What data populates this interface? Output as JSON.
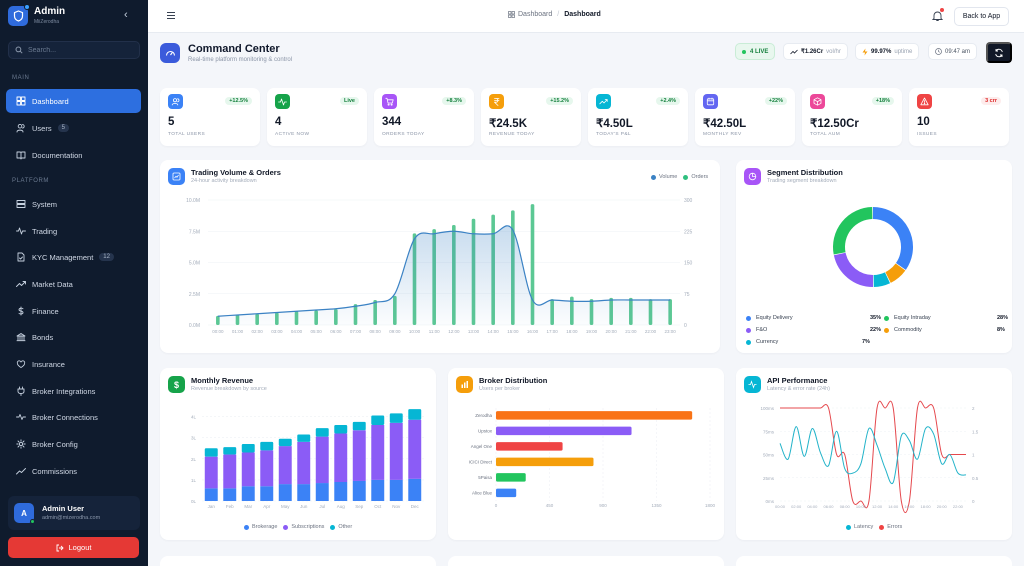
{
  "sidebar": {
    "app_title": "Admin",
    "app_subtitle": "MiiZerodha",
    "search_placeholder": "Search...",
    "section_main": "MAIN",
    "section_platform": "PLATFORM",
    "items": [
      {
        "label": "Dashboard",
        "icon": "grid-icon",
        "active": true
      },
      {
        "label": "Users",
        "icon": "users-icon",
        "badge": "5"
      },
      {
        "label": "Documentation",
        "icon": "book-icon"
      },
      {
        "label": "System",
        "icon": "server-icon"
      },
      {
        "label": "Trading",
        "icon": "activity-icon"
      },
      {
        "label": "KYC Management",
        "icon": "file-check-icon",
        "badge": "12"
      },
      {
        "label": "Market Data",
        "icon": "trending-up-icon"
      },
      {
        "label": "Finance",
        "icon": "dollar-icon"
      },
      {
        "label": "Bonds",
        "icon": "bank-icon"
      },
      {
        "label": "Insurance",
        "icon": "heart-icon"
      },
      {
        "label": "Broker Integrations",
        "icon": "plug-icon"
      },
      {
        "label": "Broker Connections",
        "icon": "pulse-icon"
      },
      {
        "label": "Broker Config",
        "icon": "gear-icon"
      },
      {
        "label": "Commissions",
        "icon": "trend-icon"
      }
    ],
    "user": {
      "initial": "A",
      "name": "Admin User",
      "email": "admin@mizerodha.com"
    },
    "logout_label": "Logout"
  },
  "topbar": {
    "breadcrumb_root": "Dashboard",
    "breadcrumb_current": "Dashboard",
    "back_label": "Back to App"
  },
  "header": {
    "title": "Command Center",
    "subtitle": "Real-time platform monitoring & control",
    "live": "4 LIVE",
    "volume": "₹1.26Cr",
    "volume_meta": "vol/hr",
    "uptime": "99.97%",
    "uptime_meta": "uptime",
    "time": "09:47 am"
  },
  "colors": {
    "accent": "#2d6fe0",
    "volume": "#3b82c4",
    "orders": "#2fbf7f",
    "danger": "#e53935"
  },
  "stats": [
    {
      "value": "5",
      "label": "TOTAL USERS",
      "change": "+12.5%",
      "color": "#3b82f6"
    },
    {
      "value": "4",
      "label": "ACTIVE NOW",
      "change": "Live",
      "color": "#16a34a"
    },
    {
      "value": "344",
      "label": "ORDERS TODAY",
      "change": "+8.3%",
      "color": "#a855f7"
    },
    {
      "value": "₹24.5K",
      "label": "REVENUE TODAY",
      "change": "+15.2%",
      "color": "#f59e0b"
    },
    {
      "value": "₹4.50L",
      "label": "TODAY'S P&L",
      "change": "+2.4%",
      "color": "#06b6d4"
    },
    {
      "value": "₹42.50L",
      "label": "MONTHLY REV",
      "change": "+22%",
      "color": "#6366f1"
    },
    {
      "value": "₹12.50Cr",
      "label": "TOTAL AUM",
      "change": "+18%",
      "color": "#ec4899"
    },
    {
      "value": "10",
      "label": "ISSUES",
      "change": "3 crr",
      "color": "#ef4444"
    }
  ],
  "panels": {
    "trading": {
      "title": "Trading Volume & Orders",
      "subtitle": "24-hour activity breakdown",
      "legend": [
        "Volume",
        "Orders"
      ]
    },
    "segment": {
      "title": "Segment Distribution",
      "subtitle": "Trading segment breakdown"
    },
    "revenue": {
      "title": "Monthly Revenue",
      "subtitle": "Revenue breakdown by source",
      "legend": [
        "Brokerage",
        "Subscriptions",
        "Other"
      ]
    },
    "broker": {
      "title": "Broker Distribution",
      "subtitle": "Users per broker"
    },
    "api": {
      "title": "API Performance",
      "subtitle": "Latency & error rate (24h)",
      "legend": [
        "Latency",
        "Errors"
      ]
    }
  },
  "chart_data": [
    {
      "type": "bar",
      "title": "Trading Volume & Orders",
      "categories": [
        "00:00",
        "01:00",
        "02:00",
        "03:00",
        "04:00",
        "05:00",
        "06:00",
        "07:00",
        "08:00",
        "09:00",
        "10:00",
        "11:00",
        "12:00",
        "13:00",
        "14:00",
        "15:00",
        "16:00",
        "17:00",
        "18:00",
        "19:00",
        "20:00",
        "21:00",
        "22:00",
        "23:00"
      ],
      "left_ticks": [
        "0.0M",
        "2.5M",
        "5.0M",
        "7.5M",
        "10.0M"
      ],
      "right_ticks": [
        "0",
        "75",
        "150",
        "225",
        "300"
      ],
      "ylim_left": [
        0,
        10
      ],
      "ylim_right": [
        0,
        300
      ],
      "series": [
        {
          "name": "Volume",
          "type": "area",
          "axis": "left",
          "values": [
            0.7,
            0.8,
            0.9,
            1.0,
            1.1,
            1.2,
            1.3,
            1.5,
            1.8,
            2.5,
            6.9,
            7.3,
            7.5,
            7.3,
            7.3,
            7.6,
            2.0,
            2.0,
            1.9,
            1.9,
            2.0,
            2.0,
            2.0,
            2.0
          ]
        },
        {
          "name": "Orders",
          "type": "bar",
          "axis": "right",
          "values": [
            22,
            25,
            27,
            30,
            33,
            35,
            38,
            50,
            60,
            70,
            220,
            230,
            240,
            255,
            265,
            275,
            290,
            62,
            68,
            62,
            65,
            65,
            62,
            62
          ]
        }
      ]
    },
    {
      "type": "pie",
      "title": "Segment Distribution",
      "categories": [
        "Equity Delivery",
        "Equity Intraday",
        "F&O",
        "Commodity",
        "Currency"
      ],
      "values": [
        35,
        28,
        22,
        8,
        7
      ],
      "labels": [
        "35%",
        "28%",
        "22%",
        "8%",
        "7%"
      ],
      "colors": [
        "#3b82f6",
        "#22c55e",
        "#8b5cf6",
        "#f59e0b",
        "#06b6d4"
      ]
    },
    {
      "type": "bar",
      "title": "Monthly Revenue",
      "stacked": true,
      "categories": [
        "Jan",
        "Feb",
        "Mar",
        "Apr",
        "May",
        "Jun",
        "Jul",
        "Aug",
        "Sep",
        "Oct",
        "Nov",
        "Dec"
      ],
      "y_ticks": [
        "0L",
        "1L",
        "2L",
        "3L",
        "4L"
      ],
      "ylim": [
        0,
        4.5
      ],
      "series": [
        {
          "name": "Brokerage",
          "values": [
            0.6,
            0.6,
            0.7,
            0.7,
            0.8,
            0.8,
            0.85,
            0.9,
            0.95,
            1.0,
            1.0,
            1.05
          ]
        },
        {
          "name": "Subscriptions",
          "values": [
            1.5,
            1.6,
            1.6,
            1.7,
            1.8,
            2.0,
            2.2,
            2.3,
            2.4,
            2.6,
            2.7,
            2.8
          ]
        },
        {
          "name": "Other",
          "values": [
            0.4,
            0.35,
            0.4,
            0.4,
            0.35,
            0.35,
            0.4,
            0.4,
            0.4,
            0.45,
            0.45,
            0.5
          ]
        }
      ]
    },
    {
      "type": "bar",
      "orientation": "horizontal",
      "title": "Broker Distribution",
      "categories": [
        "Zerodha",
        "Upstox",
        "Angel One",
        "ICICI Direct",
        "5Paisa",
        "Alice Blue"
      ],
      "values": [
        1650,
        1140,
        560,
        820,
        250,
        170
      ],
      "x_ticks": [
        "0",
        "450",
        "900",
        "1350",
        "1800"
      ],
      "xlim": [
        0,
        1800
      ],
      "colors": [
        "#f97316",
        "#8b5cf6",
        "#ef4444",
        "#f59e0b",
        "#22c55e",
        "#3b82f6"
      ]
    },
    {
      "type": "line",
      "title": "API Performance",
      "categories": [
        "00:00",
        "01:00",
        "02:00",
        "03:00",
        "04:00",
        "05:00",
        "06:00",
        "07:00",
        "08:00",
        "09:00",
        "10:00",
        "11:00",
        "12:00",
        "13:00",
        "14:00",
        "15:00",
        "16:00",
        "17:00",
        "18:00",
        "19:00",
        "20:00",
        "21:00",
        "22:00",
        "23:00"
      ],
      "left_ticks": [
        "0ms",
        "25ms",
        "50ms",
        "75ms",
        "100ms"
      ],
      "right_ticks": [
        "0",
        "0.5",
        "1",
        "1.5",
        "2"
      ],
      "ylim_left": [
        0,
        100
      ],
      "ylim_right": [
        0,
        2
      ],
      "series": [
        {
          "name": "Latency",
          "axis": "left",
          "values": [
            62,
            45,
            80,
            48,
            78,
            52,
            38,
            75,
            35,
            30,
            40,
            78,
            60,
            35,
            20,
            70,
            65,
            45,
            78,
            72,
            40,
            50,
            30,
            28
          ]
        },
        {
          "name": "Errors",
          "axis": "right",
          "values": [
            2,
            2,
            2,
            2,
            2,
            2,
            2,
            1,
            1,
            0,
            0,
            0,
            2,
            2,
            2,
            0,
            0,
            2,
            2,
            2,
            1,
            1,
            1,
            1
          ]
        }
      ]
    }
  ]
}
